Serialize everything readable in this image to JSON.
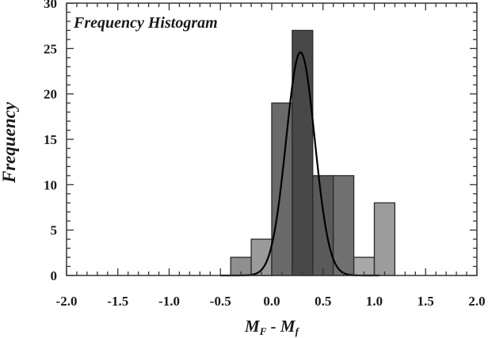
{
  "chart_data": {
    "type": "bar",
    "title": "Frequency Histogram",
    "ylabel": "Frequency",
    "xlabel": {
      "main": "M",
      "sub1": "F",
      "sep": " - ",
      "main2": "M",
      "sub2": "f"
    },
    "xlim": [
      -2.0,
      2.0
    ],
    "ylim": [
      0,
      30
    ],
    "xticks": [
      "-2.0",
      "-1.5",
      "-1.0",
      "-0.5",
      "0.0",
      "0.5",
      "1.0",
      "1.5",
      "2.0"
    ],
    "yticks": [
      "0",
      "5",
      "10",
      "15",
      "20",
      "25",
      "30"
    ],
    "bins": [
      {
        "start": -0.4,
        "end": -0.2,
        "count": 2,
        "color": "#8f8f8f"
      },
      {
        "start": -0.2,
        "end": 0.0,
        "count": 4,
        "color": "#9a9a9a"
      },
      {
        "start": 0.0,
        "end": 0.2,
        "count": 19,
        "color": "#6a6a6a"
      },
      {
        "start": 0.2,
        "end": 0.4,
        "count": 27,
        "color": "#484848"
      },
      {
        "start": 0.4,
        "end": 0.6,
        "count": 11,
        "color": "#5a5a5a"
      },
      {
        "start": 0.6,
        "end": 0.8,
        "count": 11,
        "color": "#707070"
      },
      {
        "start": 0.8,
        "end": 1.0,
        "count": 2,
        "color": "#a8a8a8"
      },
      {
        "start": 1.0,
        "end": 1.2,
        "count": 8,
        "color": "#9c9c9c"
      }
    ],
    "fit_curve": {
      "type": "gaussian",
      "mean": 0.28,
      "sd": 0.14,
      "peak": 24.6,
      "color": "#000000"
    },
    "grid": false
  }
}
